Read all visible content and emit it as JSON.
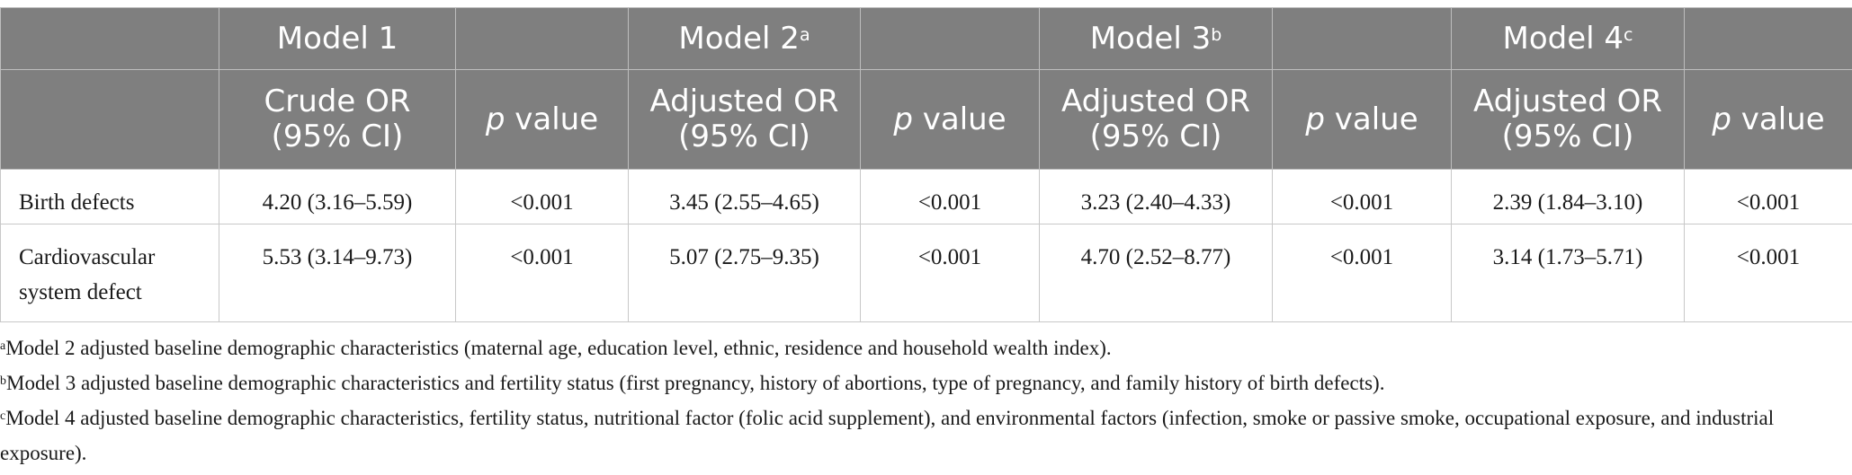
{
  "header": {
    "models": [
      {
        "label": "Model 1",
        "sup": ""
      },
      {
        "label": "Model 2",
        "sup": "a"
      },
      {
        "label": "Model 3",
        "sup": "b"
      },
      {
        "label": "Model 4",
        "sup": "c"
      }
    ],
    "col_or": [
      "Crude OR",
      "Adjusted OR",
      "Adjusted OR",
      "Adjusted OR"
    ],
    "ci": "(95% CI)",
    "p_italic": "p",
    "p_rest": " value"
  },
  "rows": [
    {
      "label_line1": "Birth defects",
      "label_line2": "",
      "cells": [
        "4.20 (3.16–5.59)",
        "<0.001",
        "3.45 (2.55–4.65)",
        "<0.001",
        "3.23 (2.40–4.33)",
        "<0.001",
        "2.39 (1.84–3.10)",
        "<0.001"
      ]
    },
    {
      "label_line1": "Cardiovascular",
      "label_line2": "system defect",
      "cells": [
        "5.53 (3.14–9.73)",
        "<0.001",
        "5.07 (2.75–9.35)",
        "<0.001",
        "4.70 (2.52–8.77)",
        "<0.001",
        "3.14 (1.73–5.71)",
        "<0.001"
      ]
    }
  ],
  "notes": [
    {
      "sup": "a",
      "text": "Model 2 adjusted baseline demographic characteristics (maternal age, education level, ethnic, residence and household wealth index)."
    },
    {
      "sup": "b",
      "text": "Model 3 adjusted baseline demographic characteristics and fertility status (first pregnancy, history of abortions, type of pregnancy, and family history of birth defects)."
    },
    {
      "sup": "c",
      "text": "Model 4 adjusted baseline demographic characteristics, fertility status, nutritional factor (folic acid supplement), and environmental factors (infection, smoke or passive smoke, occupational exposure, and industrial exposure)."
    }
  ]
}
